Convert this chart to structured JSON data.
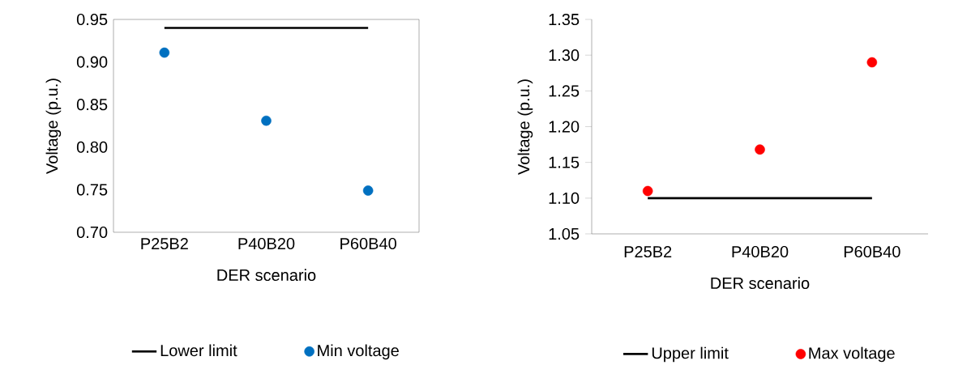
{
  "chart_data": [
    {
      "type": "scatter",
      "categories": [
        "P25B2",
        "P40B20",
        "P60B40"
      ],
      "xlabel": "DER scenario",
      "ylabel": "Voltage (p.u.)",
      "ylim": [
        0.7,
        0.95
      ],
      "yticks": [
        {
          "value": 0.7,
          "label": "0.70"
        },
        {
          "value": 0.75,
          "label": "0.75"
        },
        {
          "value": 0.8,
          "label": "0.80"
        },
        {
          "value": 0.85,
          "label": "0.85"
        },
        {
          "value": 0.9,
          "label": "0.90"
        },
        {
          "value": 0.95,
          "label": "0.95"
        }
      ],
      "legend": "bottom",
      "grid": false,
      "series": [
        {
          "name": "Lower limit",
          "type": "line",
          "color": "#000000",
          "marker": "none",
          "line_style": "solid",
          "values": [
            0.94,
            0.94,
            0.94
          ]
        },
        {
          "name": "Min voltage",
          "color": "#0070c0",
          "marker": "circle",
          "values": [
            0.911,
            0.831,
            0.749
          ]
        }
      ]
    },
    {
      "type": "scatter",
      "categories": [
        "P25B2",
        "P40B20",
        "P60B40"
      ],
      "xlabel": "DER scenario",
      "ylabel": "Voltage (p.u.)",
      "ylim": [
        1.05,
        1.35
      ],
      "yticks": [
        {
          "value": 1.05,
          "label": "1.05"
        },
        {
          "value": 1.1,
          "label": "1.10"
        },
        {
          "value": 1.15,
          "label": "1.15"
        },
        {
          "value": 1.2,
          "label": "1.20"
        },
        {
          "value": 1.25,
          "label": "1.25"
        },
        {
          "value": 1.3,
          "label": "1.30"
        },
        {
          "value": 1.35,
          "label": "1.35"
        }
      ],
      "legend": "bottom",
      "grid": false,
      "series": [
        {
          "name": "Upper limit",
          "type": "line",
          "color": "#000000",
          "marker": "none",
          "line_style": "solid",
          "values": [
            1.1,
            1.1,
            1.1
          ]
        },
        {
          "name": "Max voltage",
          "color": "#ff0000",
          "marker": "circle",
          "values": [
            1.11,
            1.168,
            1.29
          ]
        }
      ]
    }
  ]
}
